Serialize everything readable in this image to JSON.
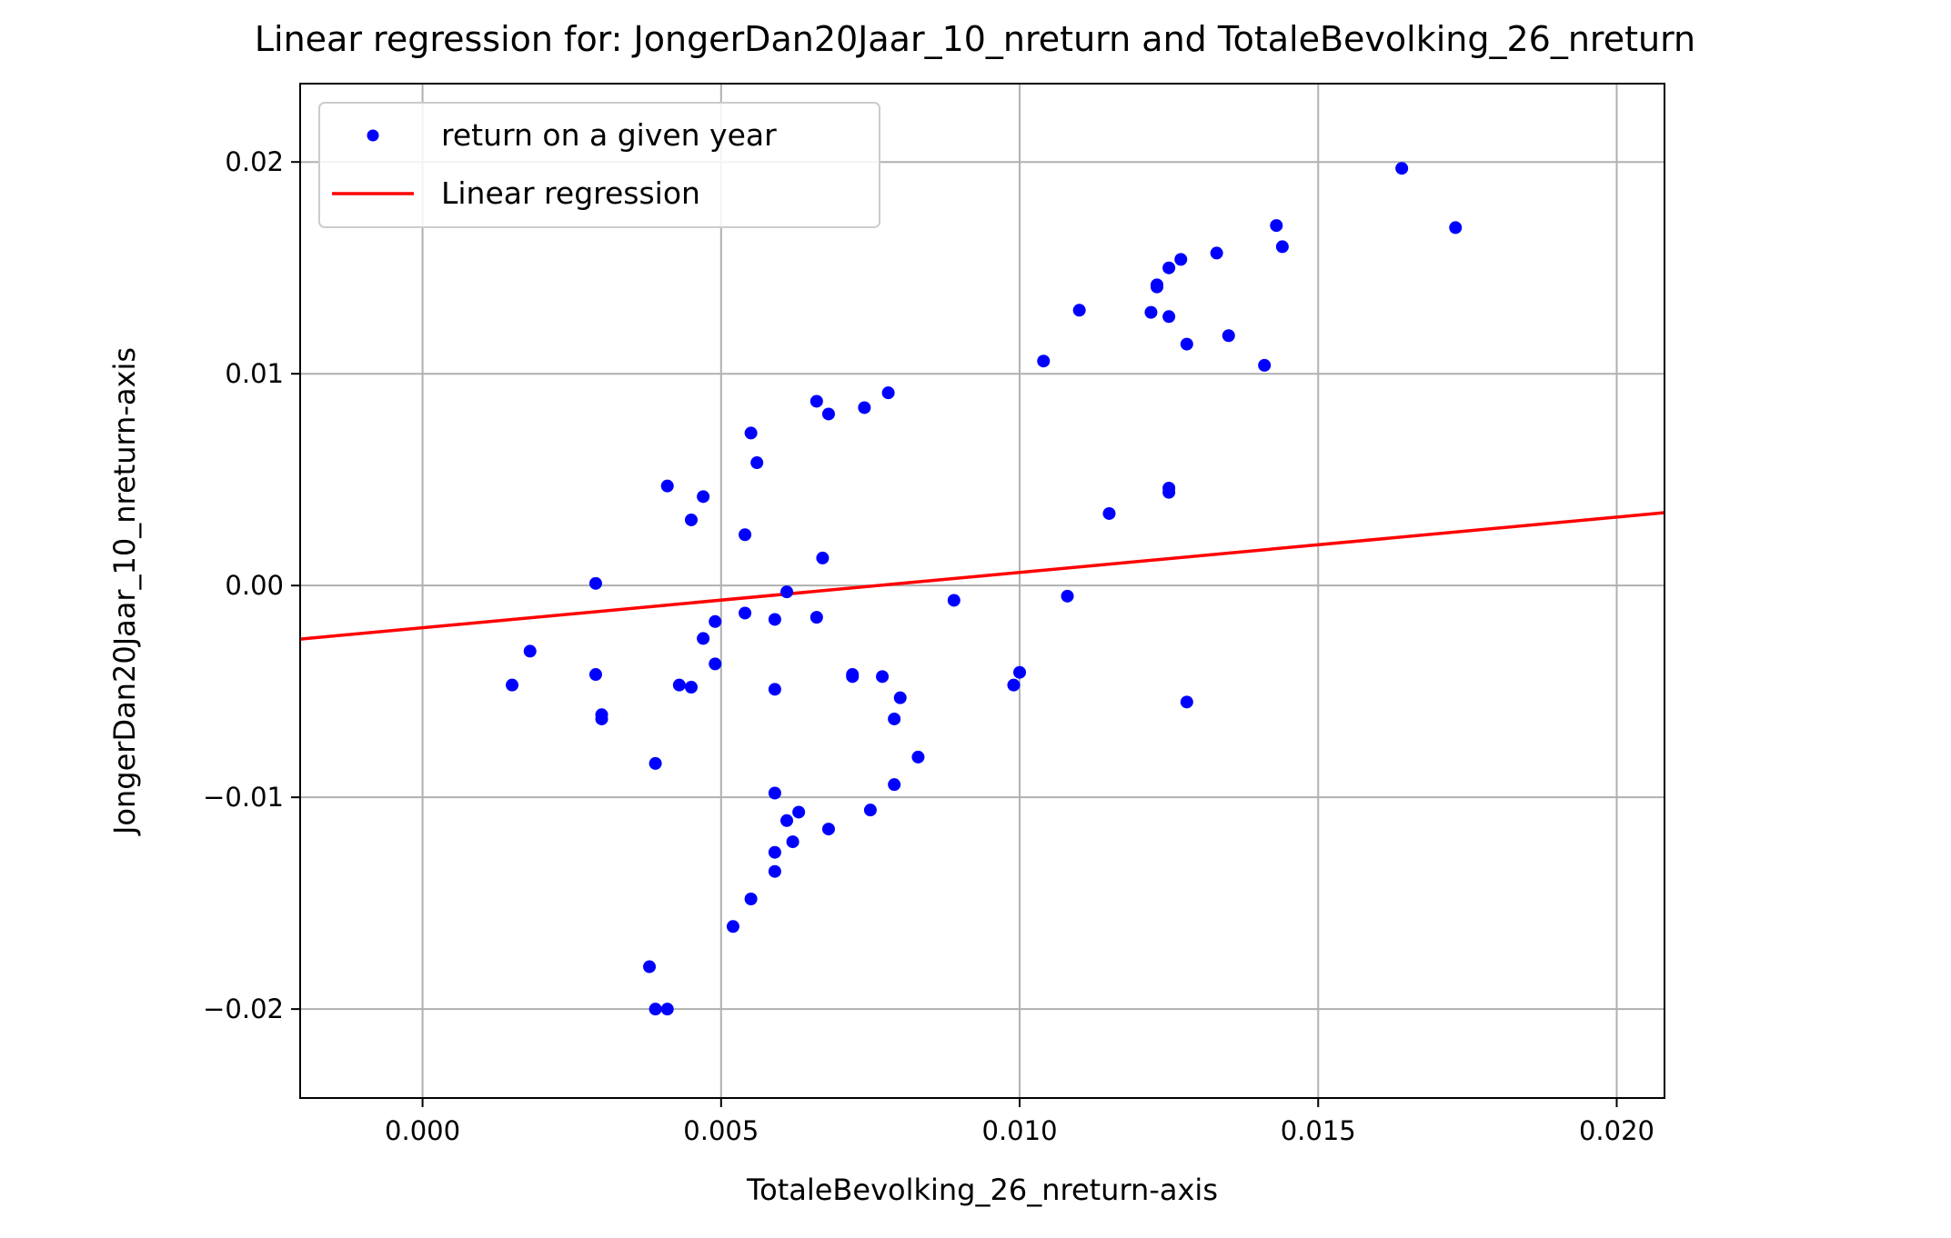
{
  "chart_data": {
    "type": "scatter",
    "title": "Linear regression for: JongerDan20Jaar_10_nreturn and TotaleBevolking_26_nreturn",
    "xlabel": "TotaleBevolking_26_nreturn-axis",
    "ylabel": "JongerDan20Jaar_10_nreturn-axis",
    "xlim": [
      -0.00205,
      0.0208
    ],
    "ylim": [
      -0.0242,
      0.0237
    ],
    "grid": true,
    "legend_position": "top-left",
    "xticks": [
      0.0,
      0.005,
      0.01,
      0.015,
      0.02
    ],
    "xtick_labels": [
      "0.000",
      "0.005",
      "0.010",
      "0.015",
      "0.020"
    ],
    "yticks": [
      -0.02,
      -0.01,
      0.0,
      0.01,
      0.02
    ],
    "ytick_labels": [
      "−0.02",
      "−0.01",
      "0.00",
      "0.01",
      "0.02"
    ],
    "colors": {
      "scatter": "#0000ff",
      "line": "#ff0000",
      "grid": "#b0b0b0"
    },
    "series": [
      {
        "name": "return on a given year",
        "kind": "scatter",
        "points": [
          [
            0.0015,
            -0.0047
          ],
          [
            0.0018,
            -0.0031
          ],
          [
            0.0029,
            0.0001
          ],
          [
            0.0029,
            -0.0042
          ],
          [
            0.003,
            -0.0061
          ],
          [
            0.003,
            -0.0063
          ],
          [
            0.0038,
            -0.018
          ],
          [
            0.0039,
            -0.02
          ],
          [
            0.0039,
            -0.0084
          ],
          [
            0.0041,
            0.0047
          ],
          [
            0.0041,
            -0.02
          ],
          [
            0.0043,
            -0.0047
          ],
          [
            0.0045,
            -0.0048
          ],
          [
            0.0045,
            0.0031
          ],
          [
            0.0047,
            -0.0025
          ],
          [
            0.0047,
            0.0042
          ],
          [
            0.0049,
            -0.0037
          ],
          [
            0.0049,
            -0.0017
          ],
          [
            0.0052,
            -0.0161
          ],
          [
            0.0054,
            0.0024
          ],
          [
            0.0054,
            -0.0013
          ],
          [
            0.0055,
            0.0072
          ],
          [
            0.0055,
            -0.0148
          ],
          [
            0.0056,
            0.0058
          ],
          [
            0.0059,
            -0.0016
          ],
          [
            0.0059,
            -0.0049
          ],
          [
            0.0059,
            -0.0098
          ],
          [
            0.0059,
            -0.0126
          ],
          [
            0.0059,
            -0.0135
          ],
          [
            0.0061,
            -0.0003
          ],
          [
            0.0061,
            -0.0111
          ],
          [
            0.0062,
            -0.0121
          ],
          [
            0.0063,
            -0.0107
          ],
          [
            0.0066,
            0.0087
          ],
          [
            0.0066,
            -0.0015
          ],
          [
            0.0067,
            0.0013
          ],
          [
            0.0068,
            0.0081
          ],
          [
            0.0068,
            -0.0115
          ],
          [
            0.0072,
            -0.0042
          ],
          [
            0.0072,
            -0.0043
          ],
          [
            0.0074,
            0.0084
          ],
          [
            0.0075,
            -0.0106
          ],
          [
            0.0077,
            -0.0043
          ],
          [
            0.0078,
            0.0091
          ],
          [
            0.0079,
            -0.0063
          ],
          [
            0.0079,
            -0.0094
          ],
          [
            0.008,
            -0.0053
          ],
          [
            0.0083,
            -0.0081
          ],
          [
            0.0089,
            -0.0007
          ],
          [
            0.0099,
            -0.0047
          ],
          [
            0.01,
            -0.0041
          ],
          [
            0.0104,
            0.0106
          ],
          [
            0.0108,
            -0.0005
          ],
          [
            0.011,
            0.013
          ],
          [
            0.0115,
            0.0034
          ],
          [
            0.0122,
            0.0129
          ],
          [
            0.0123,
            0.0141
          ],
          [
            0.0123,
            0.0142
          ],
          [
            0.0125,
            0.0044
          ],
          [
            0.0125,
            0.0046
          ],
          [
            0.0125,
            0.015
          ],
          [
            0.0125,
            0.0127
          ],
          [
            0.0127,
            0.0154
          ],
          [
            0.0128,
            0.0114
          ],
          [
            0.0128,
            -0.0055
          ],
          [
            0.0133,
            0.0157
          ],
          [
            0.0135,
            0.0118
          ],
          [
            0.0141,
            0.0104
          ],
          [
            0.0143,
            0.017
          ],
          [
            0.0144,
            0.016
          ],
          [
            0.0164,
            0.0197
          ],
          [
            0.0173,
            0.0169
          ]
        ]
      },
      {
        "name": "Linear regression",
        "kind": "line",
        "points": [
          [
            -0.00205,
            -0.00253
          ],
          [
            0.0208,
            0.00344
          ]
        ]
      }
    ]
  }
}
